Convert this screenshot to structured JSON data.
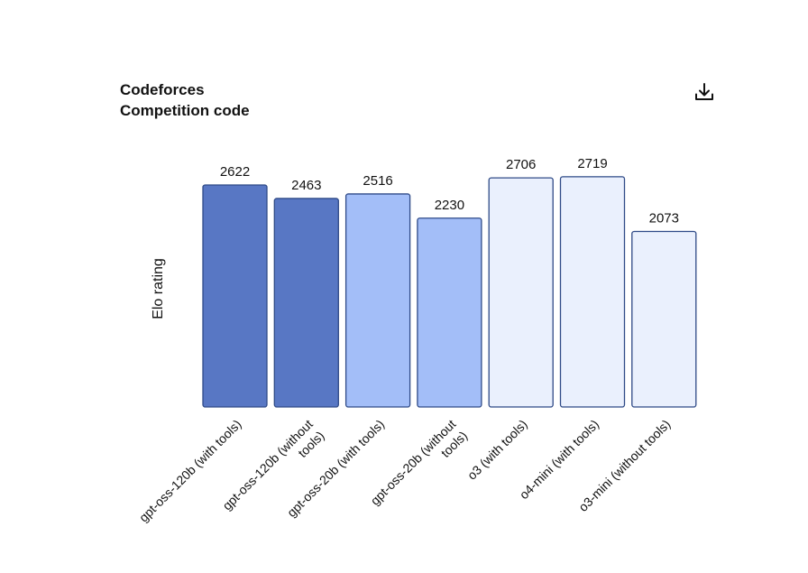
{
  "header": {
    "title_line1": "Codeforces",
    "title_line2": "Competition code"
  },
  "icons": {
    "download": "download-icon"
  },
  "colors": {
    "dark_blue": "#5877C4",
    "mid_blue": "#A3BEF8",
    "light_blue": "#EAF0FD",
    "bar_border": "#2F4A87"
  },
  "chart_data": {
    "type": "bar",
    "title": "Codeforces Competition code",
    "xlabel": "",
    "ylabel": "Elo rating",
    "ylim": [
      0,
      2800
    ],
    "grid": false,
    "categories": [
      "gpt-oss-120b (with tools)",
      "gpt-oss-120b (without tools)",
      "gpt-oss-20b (with tools)",
      "gpt-oss-20b (without tools)",
      "o3 (with tools)",
      "o4-mini (with tools)",
      "o3-mini (without tools)"
    ],
    "label_lines": [
      [
        "gpt-oss-120b (with tools)"
      ],
      [
        "gpt-oss-120b (without",
        "tools)"
      ],
      [
        "gpt-oss-20b (with tools)"
      ],
      [
        "gpt-oss-20b (without",
        "tools)"
      ],
      [
        "o3 (with tools)"
      ],
      [
        "o4-mini (with tools)"
      ],
      [
        "o3-mini (without tools)"
      ]
    ],
    "values": [
      2622,
      2463,
      2516,
      2230,
      2706,
      2719,
      2073
    ],
    "bar_colors": [
      "#5877C4",
      "#5877C4",
      "#A3BEF8",
      "#A3BEF8",
      "#EAF0FD",
      "#EAF0FD",
      "#EAF0FD"
    ]
  }
}
